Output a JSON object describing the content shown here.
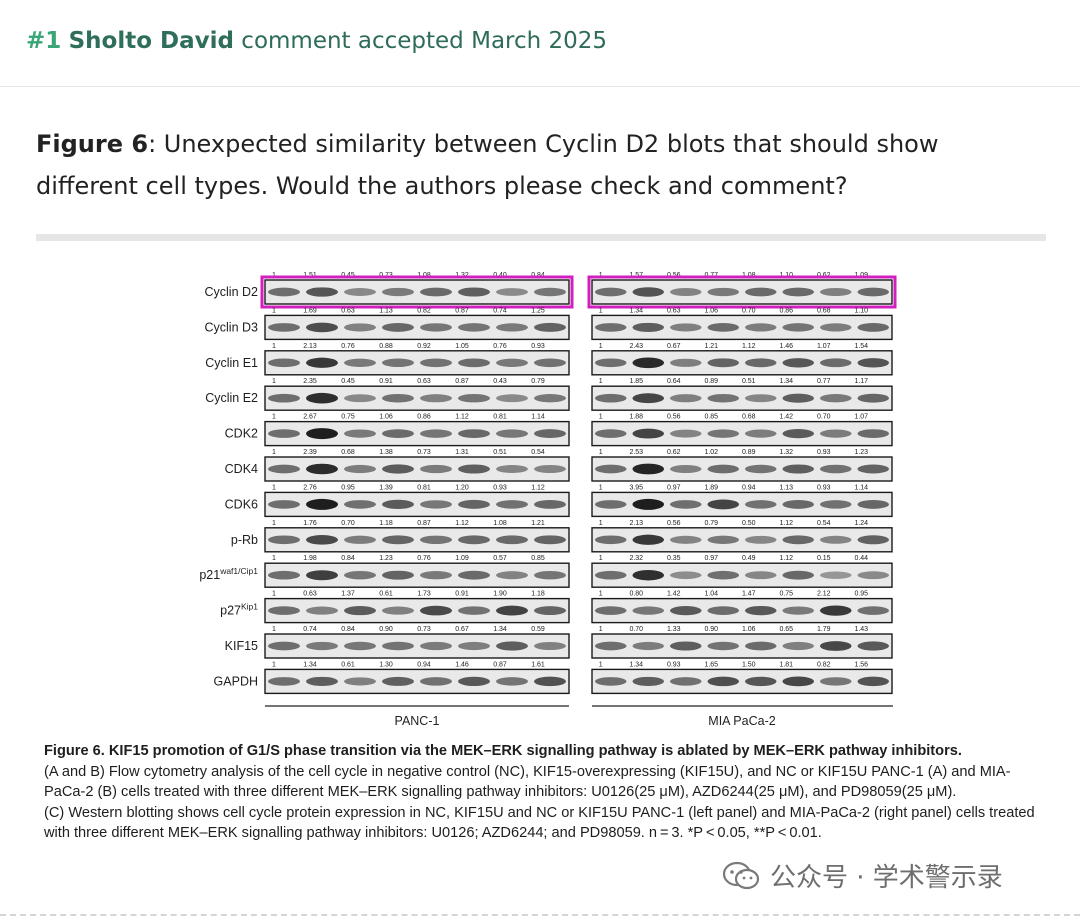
{
  "header": {
    "number": "#1",
    "author": "Sholto David",
    "status_text": "comment accepted March 2025"
  },
  "comment": {
    "figure_label": "Figure 6",
    "text": ": Unexpected similarity between Cyclin D2 blots that should show different cell types. Would the authors please check and comment?"
  },
  "figure": {
    "panels": [
      "PANC-1",
      "MIA PaCa-2"
    ],
    "rows": [
      {
        "label": "Cyclin D2",
        "sup": "",
        "values_left": [
          "1",
          "1.51",
          "0.45",
          "0.73",
          "1.08",
          "1.32",
          "0.40",
          "0.84"
        ],
        "values_right": [
          "1",
          "1.57",
          "0.56",
          "0.77",
          "1.08",
          "1.10",
          "0.62",
          "1.09"
        ],
        "highlight": true
      },
      {
        "label": "Cyclin D3",
        "sup": "",
        "values_left": [
          "1",
          "1.69",
          "0.63",
          "1.13",
          "0.82",
          "0.87",
          "0.74",
          "1.25"
        ],
        "values_right": [
          "1",
          "1.34",
          "0.63",
          "1.06",
          "0.70",
          "0.86",
          "0.68",
          "1.10"
        ],
        "highlight": false
      },
      {
        "label": "Cyclin E1",
        "sup": "",
        "values_left": [
          "1",
          "2.13",
          "0.76",
          "0.88",
          "0.92",
          "1.05",
          "0.76",
          "0.93"
        ],
        "values_right": [
          "1",
          "2.43",
          "0.67",
          "1.21",
          "1.12",
          "1.46",
          "1.07",
          "1.54"
        ],
        "highlight": false
      },
      {
        "label": "Cyclin E2",
        "sup": "",
        "values_left": [
          "1",
          "2.35",
          "0.45",
          "0.91",
          "0.63",
          "0.87",
          "0.43",
          "0.79"
        ],
        "values_right": [
          "1",
          "1.85",
          "0.64",
          "0.89",
          "0.51",
          "1.34",
          "0.77",
          "1.17"
        ],
        "highlight": false
      },
      {
        "label": "CDK2",
        "sup": "",
        "values_left": [
          "1",
          "2.67",
          "0.75",
          "1.06",
          "0.86",
          "1.12",
          "0.81",
          "1.14"
        ],
        "values_right": [
          "1",
          "1.88",
          "0.56",
          "0.85",
          "0.68",
          "1.42",
          "0.70",
          "1.07"
        ],
        "highlight": false
      },
      {
        "label": "CDK4",
        "sup": "",
        "values_left": [
          "1",
          "2.39",
          "0.68",
          "1.38",
          "0.73",
          "1.31",
          "0.51",
          "0.54"
        ],
        "values_right": [
          "1",
          "2.53",
          "0.62",
          "1.02",
          "0.89",
          "1.32",
          "0.93",
          "1.23"
        ],
        "highlight": false
      },
      {
        "label": "CDK6",
        "sup": "",
        "values_left": [
          "1",
          "2.76",
          "0.95",
          "1.39",
          "0.81",
          "1.20",
          "0.93",
          "1.12"
        ],
        "values_right": [
          "1",
          "3.95",
          "0.97",
          "1.89",
          "0.94",
          "1.13",
          "0.93",
          "1.14"
        ],
        "highlight": false
      },
      {
        "label": "p-Rb",
        "sup": "",
        "values_left": [
          "1",
          "1.76",
          "0.70",
          "1.18",
          "0.87",
          "1.12",
          "1.08",
          "1.21"
        ],
        "values_right": [
          "1",
          "2.13",
          "0.56",
          "0.79",
          "0.50",
          "1.12",
          "0.54",
          "1.24"
        ],
        "highlight": false
      },
      {
        "label": "p21",
        "sup": "waf1/Cip1",
        "values_left": [
          "1",
          "1.98",
          "0.84",
          "1.23",
          "0.76",
          "1.09",
          "0.57",
          "0.85"
        ],
        "values_right": [
          "1",
          "2.32",
          "0.35",
          "0.97",
          "0.49",
          "1.12",
          "0.15",
          "0.44"
        ],
        "highlight": false
      },
      {
        "label": "p27",
        "sup": "Kip1",
        "values_left": [
          "1",
          "0.63",
          "1.37",
          "0.61",
          "1.73",
          "0.91",
          "1.90",
          "1.18"
        ],
        "values_right": [
          "1",
          "0.80",
          "1.42",
          "1.04",
          "1.47",
          "0.75",
          "2.12",
          "0.95"
        ],
        "highlight": false
      },
      {
        "label": "KIF15",
        "sup": "",
        "values_left": [
          "1",
          "0.74",
          "0.84",
          "0.90",
          "0.73",
          "0.67",
          "1.34",
          "0.59"
        ],
        "values_right": [
          "1",
          "0.70",
          "1.33",
          "0.90",
          "1.06",
          "0.65",
          "1.79",
          "1.43"
        ],
        "highlight": false
      },
      {
        "label": "GAPDH",
        "sup": "",
        "values_left": [
          "1",
          "1.34",
          "0.61",
          "1.30",
          "0.94",
          "1.46",
          "0.87",
          "1.61"
        ],
        "values_right": [
          "1",
          "1.34",
          "0.93",
          "1.65",
          "1.50",
          "1.81",
          "0.82",
          "1.56"
        ],
        "highlight": false
      }
    ],
    "highlight_color": "#d21fbf"
  },
  "caption": {
    "title": "Figure 6. KIF15 promotion of G1/S phase transition via the MEK–ERK signalling pathway is ablated by MEK–ERK pathway inhibitors.",
    "line_a": "(A and B) Flow cytometry analysis of the cell cycle in negative control (NC), KIF15-overexpressing (KIF15U), and NC or KIF15U PANC-1 (A) and MIA-PaCa-2 (B) cells treated with three different MEK–ERK signalling pathway inhibitors: U0126(25 μM), AZD6244(25 μM), and PD98059(25 μM).",
    "line_c": "(C) Western blotting shows cell cycle protein expression in NC, KIF15U and NC or KIF15U PANC-1 (left panel) and MIA-PaCa-2 (right panel) cells treated with three different MEK–ERK signalling pathway inhibitors: U0126; AZD6244; and PD98059. n = 3. *P < 0.05, **P < 0.01."
  },
  "watermark": {
    "icon": "wechat-icon",
    "text": "公众号 · 学术警示录"
  }
}
